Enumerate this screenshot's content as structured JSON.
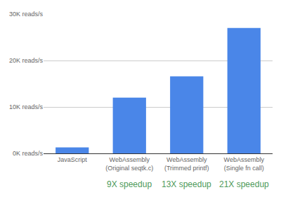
{
  "chart_data": {
    "type": "bar",
    "categories": [
      "JavaScript",
      "WebAssembly\n(Original seqtk.c)",
      "WebAssembly\n(Trimmed printf)",
      "WebAssembly\n(Single fn call)"
    ],
    "values": [
      1300,
      12000,
      16600,
      27000
    ],
    "color": "#4a86e8",
    "ylim": [
      0,
      30000
    ],
    "yticks": [
      {
        "value": 0,
        "label": "0K reads/s"
      },
      {
        "value": 10000,
        "label": "10K reads/s"
      },
      {
        "value": 20000,
        "label": "20K reads/s"
      },
      {
        "value": 30000,
        "label": "30K reads/s"
      }
    ],
    "grid": true,
    "annotations": [
      {
        "x": "WebAssembly\n(Original seqtk.c)",
        "text": "9X speedup"
      },
      {
        "x": "WebAssembly\n(Trimmed printf)",
        "text": "13X speedup"
      },
      {
        "x": "WebAssembly\n(Single fn call)",
        "text": "21X speedup"
      }
    ]
  }
}
